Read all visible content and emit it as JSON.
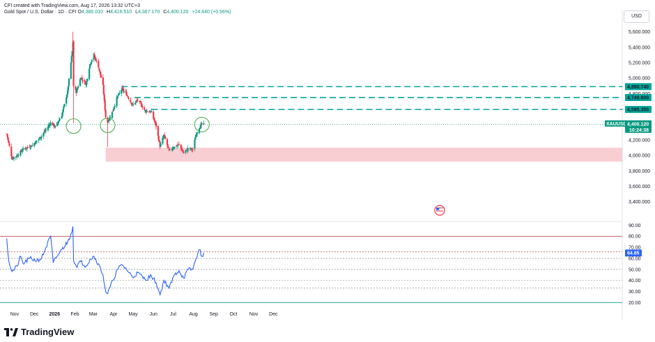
{
  "header": {
    "line1": "CFI created with TradingView.com, Aug 17, 2026 13:32 UTC+3",
    "symbol_desc": "Gold Spot / U.S. Dollar · 1D · CFI",
    "open_label": "O",
    "open": "4,380.010",
    "high_label": "H",
    "high": "4,416.510",
    "low_label": "L",
    "low": "4,367.170",
    "close_label": "C",
    "close": "4,400.120",
    "change": "+24.440 (+0.56%)"
  },
  "currency_button": "USD",
  "brand": "TradingView",
  "colors": {
    "up": "#089981",
    "down": "#f23645",
    "dash": "#00a59a",
    "rsi": "#2962ff",
    "zone": "#f8c5cb",
    "circle": "#4caf50",
    "price_line": "#089981"
  },
  "chart_data": [
    {
      "type": "candlestick",
      "symbol": "XAUUSD",
      "x_labels": [
        "Nov",
        "Dec",
        "2026",
        "Feb",
        "Mar",
        "Apr",
        "May",
        "Jun",
        "Jul",
        "Aug",
        "Sep",
        "Oct",
        "Nov",
        "Dec"
      ],
      "y_ticks": [
        "5,600.000",
        "5,400.000",
        "5,200.000",
        "5,000.000",
        "4,800.000",
        "4,200.000",
        "4,000.000",
        "3,800.000",
        "3,600.000",
        "3,400.000"
      ],
      "ylim": [
        3300,
        5750
      ],
      "close_anchors": [
        {
          "date": "2025-10-20",
          "close": 4280
        },
        {
          "date": "2025-10-28",
          "close": 3960
        },
        {
          "date": "2025-11-05",
          "close": 4000
        },
        {
          "date": "2025-11-14",
          "close": 4080
        },
        {
          "date": "2025-11-28",
          "close": 4130
        },
        {
          "date": "2025-12-12",
          "close": 4250
        },
        {
          "date": "2025-12-26",
          "close": 4420
        },
        {
          "date": "2026-01-02",
          "close": 4370
        },
        {
          "date": "2026-01-12",
          "close": 4520
        },
        {
          "date": "2026-01-21",
          "close": 4830
        },
        {
          "date": "2026-01-28",
          "close": 5350
        },
        {
          "date": "2026-01-29",
          "close": 5470
        },
        {
          "date": "2026-01-30",
          "close": 4900
        },
        {
          "date": "2026-02-03",
          "close": 4820
        },
        {
          "date": "2026-02-10",
          "close": 5010
        },
        {
          "date": "2026-02-18",
          "close": 4920
        },
        {
          "date": "2026-02-24",
          "close": 5180
        },
        {
          "date": "2026-03-02",
          "close": 5300
        },
        {
          "date": "2026-03-09",
          "close": 5150
        },
        {
          "date": "2026-03-16",
          "close": 4900
        },
        {
          "date": "2026-03-20",
          "close": 4500
        },
        {
          "date": "2026-03-23",
          "close": 4430
        },
        {
          "date": "2026-03-31",
          "close": 4580
        },
        {
          "date": "2026-04-07",
          "close": 4760
        },
        {
          "date": "2026-04-14",
          "close": 4860
        },
        {
          "date": "2026-04-21",
          "close": 4790
        },
        {
          "date": "2026-04-30",
          "close": 4650
        },
        {
          "date": "2026-05-08",
          "close": 4720
        },
        {
          "date": "2026-05-19",
          "close": 4580
        },
        {
          "date": "2026-05-29",
          "close": 4560
        },
        {
          "date": "2026-06-05",
          "close": 4380
        },
        {
          "date": "2026-06-11",
          "close": 4120
        },
        {
          "date": "2026-06-17",
          "close": 4260
        },
        {
          "date": "2026-06-25",
          "close": 4060
        },
        {
          "date": "2026-07-03",
          "close": 4110
        },
        {
          "date": "2026-07-10",
          "close": 4140
        },
        {
          "date": "2026-07-17",
          "close": 4030
        },
        {
          "date": "2026-07-24",
          "close": 4090
        },
        {
          "date": "2026-07-31",
          "close": 4080
        },
        {
          "date": "2026-08-05",
          "close": 4270
        },
        {
          "date": "2026-08-10",
          "close": 4360
        },
        {
          "date": "2026-08-14",
          "close": 4410
        },
        {
          "date": "2026-08-17",
          "close": 4400
        }
      ],
      "levels": [
        {
          "value": 4890.74,
          "label": "4,890.740"
        },
        {
          "value": 4749.6,
          "label": "4,749.600"
        },
        {
          "value": 4595.35,
          "label": "4,595.350"
        }
      ],
      "support_zone": {
        "from": 3920,
        "to": 4100,
        "start": "2026-03-20"
      },
      "last_price": {
        "label": "4,400.120",
        "symbol": "XAUUSD",
        "countdown": "10:24:38"
      },
      "circle_markers": [
        "2026-01-30",
        "2026-03-23",
        "2026-08-14"
      ]
    },
    {
      "type": "line",
      "name": "RSI",
      "y_ticks": [
        "90.00",
        "80.00",
        "70.00",
        "60.00",
        "50.00",
        "40.00",
        "30.00",
        "20.00"
      ],
      "ylim": [
        15,
        95
      ],
      "reference_lines": [
        80,
        66,
        60,
        50,
        40,
        33,
        20
      ],
      "anchors": [
        {
          "date": "2025-10-20",
          "value": 78
        },
        {
          "date": "2025-10-23",
          "value": 58
        },
        {
          "date": "2025-10-28",
          "value": 48
        },
        {
          "date": "2025-11-05",
          "value": 53
        },
        {
          "date": "2025-11-10",
          "value": 62
        },
        {
          "date": "2025-11-14",
          "value": 55
        },
        {
          "date": "2025-11-24",
          "value": 60
        },
        {
          "date": "2025-12-05",
          "value": 58
        },
        {
          "date": "2025-12-12",
          "value": 60
        },
        {
          "date": "2025-12-19",
          "value": 70
        },
        {
          "date": "2025-12-26",
          "value": 80
        },
        {
          "date": "2025-12-30",
          "value": 56
        },
        {
          "date": "2026-01-05",
          "value": 62
        },
        {
          "date": "2026-01-12",
          "value": 68
        },
        {
          "date": "2026-01-21",
          "value": 75
        },
        {
          "date": "2026-01-26",
          "value": 82
        },
        {
          "date": "2026-01-29",
          "value": 89
        },
        {
          "date": "2026-01-30",
          "value": 58
        },
        {
          "date": "2026-02-03",
          "value": 53
        },
        {
          "date": "2026-02-10",
          "value": 57
        },
        {
          "date": "2026-02-18",
          "value": 53
        },
        {
          "date": "2026-02-24",
          "value": 59
        },
        {
          "date": "2026-03-02",
          "value": 62
        },
        {
          "date": "2026-03-09",
          "value": 55
        },
        {
          "date": "2026-03-16",
          "value": 45
        },
        {
          "date": "2026-03-20",
          "value": 30
        },
        {
          "date": "2026-03-23",
          "value": 28
        },
        {
          "date": "2026-03-31",
          "value": 40
        },
        {
          "date": "2026-04-07",
          "value": 50
        },
        {
          "date": "2026-04-14",
          "value": 54
        },
        {
          "date": "2026-04-21",
          "value": 50
        },
        {
          "date": "2026-04-30",
          "value": 43
        },
        {
          "date": "2026-05-08",
          "value": 47
        },
        {
          "date": "2026-05-19",
          "value": 41
        },
        {
          "date": "2026-05-29",
          "value": 44
        },
        {
          "date": "2026-06-05",
          "value": 38
        },
        {
          "date": "2026-06-11",
          "value": 27
        },
        {
          "date": "2026-06-17",
          "value": 40
        },
        {
          "date": "2026-06-25",
          "value": 33
        },
        {
          "date": "2026-07-03",
          "value": 45
        },
        {
          "date": "2026-07-10",
          "value": 49
        },
        {
          "date": "2026-07-17",
          "value": 42
        },
        {
          "date": "2026-07-24",
          "value": 50
        },
        {
          "date": "2026-07-31",
          "value": 50
        },
        {
          "date": "2026-08-05",
          "value": 60
        },
        {
          "date": "2026-08-10",
          "value": 68
        },
        {
          "date": "2026-08-14",
          "value": 62
        },
        {
          "date": "2026-08-17",
          "value": 64.85
        }
      ],
      "last_value_label": "64.85"
    }
  ]
}
